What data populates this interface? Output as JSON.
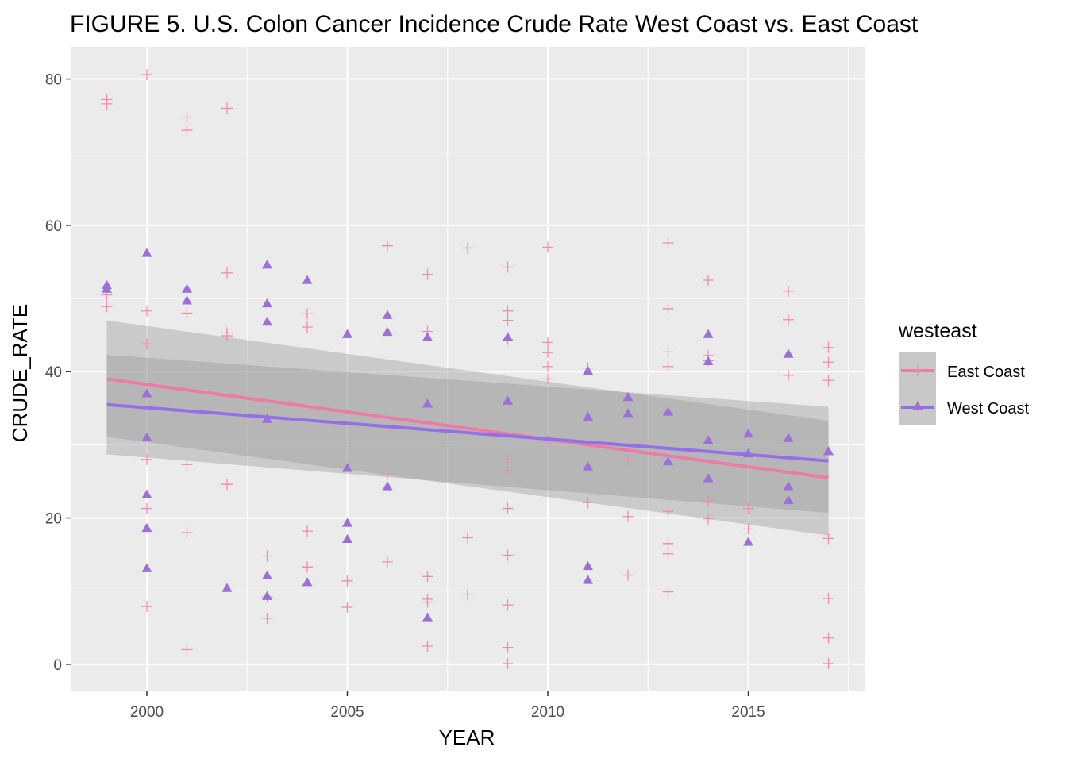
{
  "chart_data": {
    "type": "scatter",
    "title": "FIGURE 5. U.S. Colon Cancer Incidence Crude Rate West Coast vs. East Coast",
    "xlabel": "YEAR",
    "ylabel": "CRUDE_RATE",
    "xlim": [
      1998.1,
      2017.9
    ],
    "ylim": [
      -3.7,
      84.4
    ],
    "x_ticks": [
      "2000",
      "2005",
      "2010",
      "2015"
    ],
    "y_ticks": [
      "0",
      "20",
      "40",
      "60",
      "80"
    ],
    "grid": true,
    "legend": {
      "title": "westeast",
      "position": "right"
    },
    "series": [
      {
        "name": "East Coast",
        "marker": "cross",
        "color": "#F08BB5",
        "line_color": "#EC7BA6",
        "points": [
          [
            1999,
            77.2
          ],
          [
            1999,
            76.6
          ],
          [
            1999,
            50.5
          ],
          [
            1999,
            48.9
          ],
          [
            2000,
            80.6
          ],
          [
            2000,
            48.3
          ],
          [
            2000,
            43.8
          ],
          [
            2000,
            28.0
          ],
          [
            2000,
            21.3
          ],
          [
            2000,
            7.9
          ],
          [
            2001,
            74.8
          ],
          [
            2001,
            73.0
          ],
          [
            2001,
            48.0
          ],
          [
            2001,
            27.3
          ],
          [
            2001,
            18.0
          ],
          [
            2001,
            2.0
          ],
          [
            2002,
            76.0
          ],
          [
            2002,
            53.5
          ],
          [
            2002,
            45.3
          ],
          [
            2002,
            44.9
          ],
          [
            2002,
            24.6
          ],
          [
            2003,
            14.8
          ],
          [
            2003,
            9.2
          ],
          [
            2003,
            6.3
          ],
          [
            2004,
            47.9
          ],
          [
            2004,
            46.1
          ],
          [
            2004,
            18.2
          ],
          [
            2004,
            13.3
          ],
          [
            2005,
            11.4
          ],
          [
            2005,
            7.8
          ],
          [
            2006,
            57.2
          ],
          [
            2006,
            26.0
          ],
          [
            2006,
            14.0
          ],
          [
            2007,
            53.3
          ],
          [
            2007,
            45.5
          ],
          [
            2007,
            12.0
          ],
          [
            2007,
            8.9
          ],
          [
            2007,
            8.5
          ],
          [
            2007,
            2.5
          ],
          [
            2008,
            56.9
          ],
          [
            2008,
            17.3
          ],
          [
            2008,
            9.5
          ],
          [
            2009,
            54.3
          ],
          [
            2009,
            48.3
          ],
          [
            2009,
            47.0
          ],
          [
            2009,
            44.4
          ],
          [
            2009,
            28.0
          ],
          [
            2009,
            26.5
          ],
          [
            2009,
            21.3
          ],
          [
            2009,
            14.9
          ],
          [
            2009,
            8.1
          ],
          [
            2009,
            2.3
          ],
          [
            2009,
            0.1
          ],
          [
            2010,
            57.0
          ],
          [
            2010,
            44.0
          ],
          [
            2010,
            42.6
          ],
          [
            2010,
            40.7
          ],
          [
            2010,
            39.0
          ],
          [
            2010,
            30.5
          ],
          [
            2011,
            40.5
          ],
          [
            2011,
            22.1
          ],
          [
            2012,
            27.9
          ],
          [
            2012,
            20.2
          ],
          [
            2012,
            12.2
          ],
          [
            2013,
            57.6
          ],
          [
            2013,
            48.6
          ],
          [
            2013,
            42.7
          ],
          [
            2013,
            40.7
          ],
          [
            2013,
            20.9
          ],
          [
            2013,
            16.5
          ],
          [
            2013,
            15.1
          ],
          [
            2013,
            9.9
          ],
          [
            2014,
            52.5
          ],
          [
            2014,
            42.2
          ],
          [
            2014,
            41.5
          ],
          [
            2014,
            22.3
          ],
          [
            2014,
            19.9
          ],
          [
            2015,
            21.3
          ],
          [
            2015,
            18.5
          ],
          [
            2016,
            51.0
          ],
          [
            2016,
            47.1
          ],
          [
            2016,
            39.5
          ],
          [
            2017,
            43.3
          ],
          [
            2017,
            41.3
          ],
          [
            2017,
            38.8
          ],
          [
            2017,
            17.2
          ],
          [
            2017,
            9.0
          ],
          [
            2017,
            3.6
          ],
          [
            2017,
            0.1
          ]
        ],
        "smooth": {
          "x": [
            1999,
            2017
          ],
          "y": [
            39.0,
            25.5
          ],
          "ci_lower": [
            31.1,
            17.6
          ],
          "ci_upper": [
            47.0,
            33.3
          ]
        }
      },
      {
        "name": "West Coast",
        "marker": "triangle",
        "color": "#9B70D9",
        "line_color": "#9370E6",
        "points": [
          [
            1999,
            51.7
          ],
          [
            1999,
            51.2
          ],
          [
            2000,
            56.1
          ],
          [
            2000,
            36.9
          ],
          [
            2000,
            30.9
          ],
          [
            2000,
            23.1
          ],
          [
            2000,
            18.5
          ],
          [
            2000,
            13.0
          ],
          [
            2001,
            51.2
          ],
          [
            2001,
            49.6
          ],
          [
            2002,
            10.3
          ],
          [
            2003,
            54.5
          ],
          [
            2003,
            49.2
          ],
          [
            2003,
            46.7
          ],
          [
            2003,
            33.4
          ],
          [
            2003,
            12.0
          ],
          [
            2003,
            9.2
          ],
          [
            2004,
            52.4
          ],
          [
            2004,
            11.1
          ],
          [
            2005,
            45.0
          ],
          [
            2005,
            26.7
          ],
          [
            2005,
            19.2
          ],
          [
            2005,
            17.0
          ],
          [
            2006,
            47.6
          ],
          [
            2006,
            45.3
          ],
          [
            2006,
            24.2
          ],
          [
            2007,
            44.6
          ],
          [
            2007,
            35.5
          ],
          [
            2007,
            6.3
          ],
          [
            2009,
            44.6
          ],
          [
            2009,
            35.9
          ],
          [
            2011,
            40.0
          ],
          [
            2011,
            33.7
          ],
          [
            2011,
            26.9
          ],
          [
            2011,
            13.3
          ],
          [
            2011,
            11.4
          ],
          [
            2012,
            36.4
          ],
          [
            2012,
            34.2
          ],
          [
            2013,
            34.4
          ],
          [
            2013,
            27.6
          ],
          [
            2014,
            45.0
          ],
          [
            2014,
            41.3
          ],
          [
            2014,
            30.5
          ],
          [
            2014,
            25.3
          ],
          [
            2015,
            31.4
          ],
          [
            2015,
            28.7
          ],
          [
            2015,
            16.6
          ],
          [
            2016,
            42.3
          ],
          [
            2016,
            30.8
          ],
          [
            2016,
            24.2
          ],
          [
            2016,
            22.3
          ],
          [
            2017,
            29.0
          ]
        ],
        "smooth": {
          "x": [
            1999,
            2017
          ],
          "y": [
            35.5,
            27.8
          ],
          "ci_lower": [
            28.7,
            20.7
          ],
          "ci_upper": [
            42.3,
            35.2
          ]
        }
      }
    ]
  }
}
